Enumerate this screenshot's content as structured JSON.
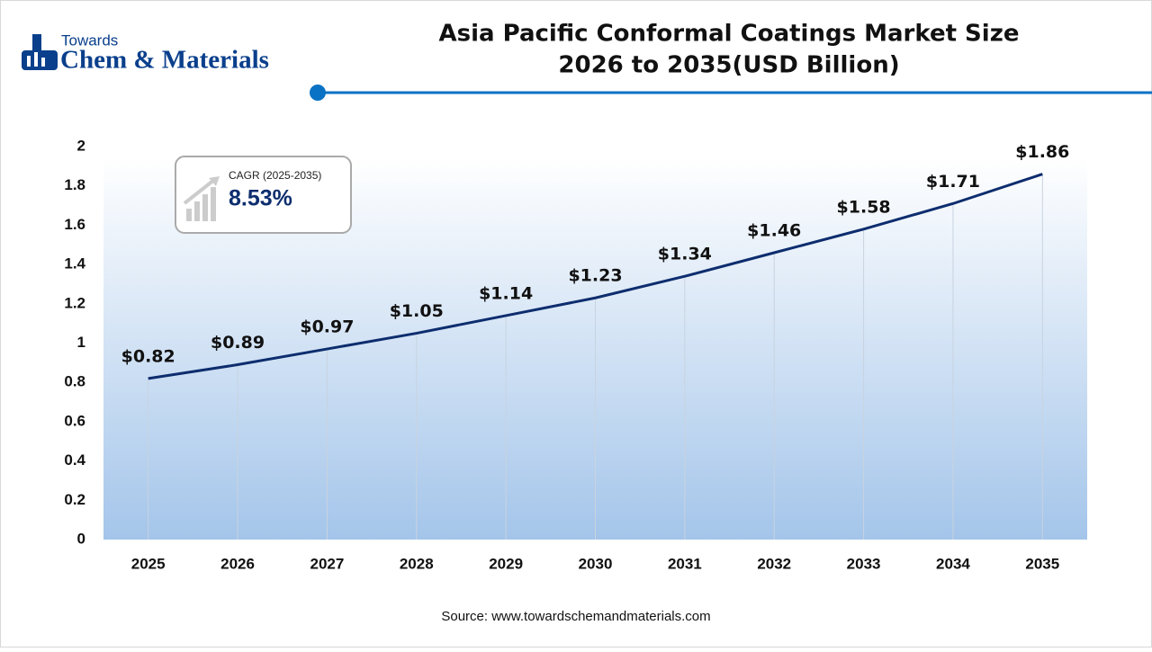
{
  "logo": {
    "top": "Towards",
    "bottom": "Chem & Materials"
  },
  "chart_data": {
    "type": "line",
    "title": [
      "Asia Pacific Conformal Coatings Market Size",
      "2026 to 2035(USD Billion)"
    ],
    "categories": [
      "2025",
      "2026",
      "2027",
      "2028",
      "2029",
      "2030",
      "2031",
      "2032",
      "2033",
      "2034",
      "2035"
    ],
    "series": [
      {
        "name": "Market Size",
        "color": "#0d2d6e",
        "values": [
          0.82,
          0.89,
          0.97,
          1.05,
          1.14,
          1.23,
          1.34,
          1.46,
          1.58,
          1.71,
          1.86
        ],
        "value_labels": [
          "$0.82",
          "$0.89",
          "$0.97",
          "$1.05",
          "$1.14",
          "$1.23",
          "$1.34",
          "$1.46",
          "$1.58",
          "$1.71",
          "$1.86"
        ]
      }
    ],
    "ylim": [
      0,
      2
    ],
    "yticks": [
      0,
      0.2,
      0.4,
      0.6,
      0.8,
      1,
      1.2,
      1.4,
      1.6,
      1.8,
      2
    ],
    "annotations": {
      "cagr_label": "CAGR (2025-2035)",
      "cagr_value": "8.53%"
    },
    "source": "Source: www.towardschemandmaterials.com"
  }
}
